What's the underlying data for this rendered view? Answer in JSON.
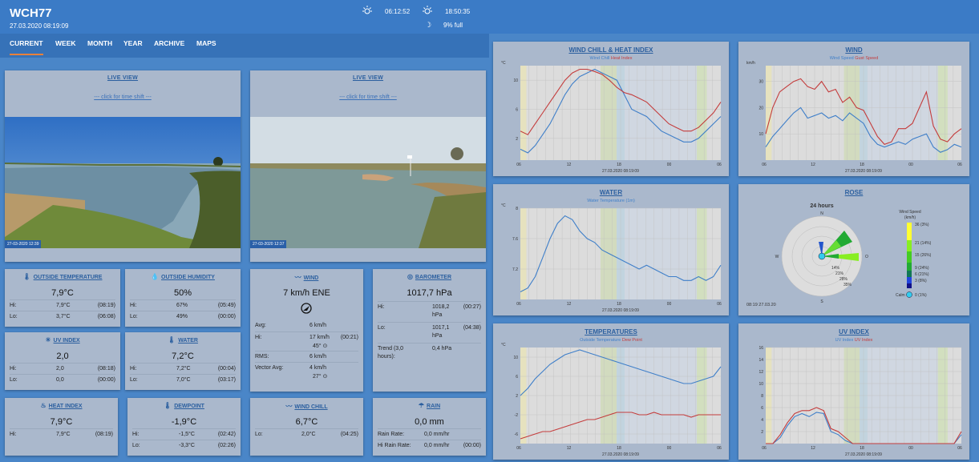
{
  "header": {
    "title": "WCH77",
    "datetime": "27.03.2020 08:19:09",
    "sunrise": "06:12:52",
    "sunset": "18:50:35",
    "moon_phase": "9% full"
  },
  "nav": {
    "items": [
      "CURRENT",
      "WEEK",
      "MONTH",
      "YEAR",
      "ARCHIVE",
      "MAPS"
    ]
  },
  "cams": [
    {
      "title": "LIVE VIEW",
      "link": "--- click for time shift ---",
      "stamp": "27-03-2020 12:39"
    },
    {
      "title": "LIVE VIEW",
      "link": "--- click for time shift ---",
      "stamp": "27-03-2020 12:37"
    }
  ],
  "outside_temp": {
    "title": "OUTSIDE TEMPERATURE",
    "value": "7,9°C",
    "hi_label": "Hi:",
    "hi": "7,9°C",
    "hi_time": "(08:19)",
    "lo_label": "Lo:",
    "lo": "3,7°C",
    "lo_time": "(06:08)"
  },
  "outside_hum": {
    "title": "OUTSIDE HUMIDITY",
    "value": "50%",
    "hi_label": "Hi:",
    "hi": "67%",
    "hi_time": "(05:49)",
    "lo_label": "Lo:",
    "lo": "49%",
    "lo_time": "(00:00)"
  },
  "uv": {
    "title": "UV INDEX",
    "value": "2,0",
    "hi_label": "Hi:",
    "hi": "2,0",
    "hi_time": "(08:18)",
    "lo_label": "Lo:",
    "lo": "0,0",
    "lo_time": "(00:00)"
  },
  "water": {
    "title": "WATER",
    "value": "7,2°C",
    "hi_label": "Hi:",
    "hi": "7,2°C",
    "hi_time": "(00:04)",
    "lo_label": "Lo:",
    "lo": "7,0°C",
    "lo_time": "(03:17)"
  },
  "heat": {
    "title": "HEAT INDEX",
    "value": "7,9°C",
    "hi_label": "Hi:",
    "hi": "7,9°C",
    "hi_time": "(08:19)"
  },
  "dew": {
    "title": "DEWPOINT",
    "value": "-1,9°C",
    "hi_label": "Hi:",
    "hi": "-1,5°C",
    "hi_time": "(02:42)",
    "lo_label": "Lo:",
    "lo": "-3,3°C",
    "lo_time": "(02:26)"
  },
  "wind": {
    "title": "WIND",
    "value": "7 km/h ENE",
    "avg_label": "Avg:",
    "avg": "6 km/h",
    "hi_label": "Hi:",
    "hi": "17 km/h",
    "hi_deg": "45° ⊙",
    "hi_time": "(00:21)",
    "rms_label": "RMS:",
    "rms": "6 km/h",
    "vec_label": "Vector Avg:",
    "vec": "4 km/h",
    "vec_deg": "27° ⊙"
  },
  "baro": {
    "title": "BAROMETER",
    "value": "1017,7 hPa",
    "hi_label": "Hi:",
    "hi": "1018,2",
    "hi_unit": "hPa",
    "hi_time": "(00:27)",
    "lo_label": "Lo:",
    "lo": "1017,1",
    "lo_unit": "hPa",
    "lo_time": "(04:38)",
    "trend_label": "Trend (3,0",
    "trend_label2": "hours):",
    "trend": "0,4 hPa"
  },
  "windchill": {
    "title": "WIND CHILL",
    "value": "6,7°C",
    "lo_label": "Lo:",
    "lo": "2,0°C",
    "lo_time": "(04:25)"
  },
  "rain": {
    "title": "RAIN",
    "value": "0,0 mm",
    "rate_label": "Rain Rate:",
    "rate": "0,0 mm/hr",
    "hirate_label": "Hi Rain Rate:",
    "hirate": "0,0 mm/hr",
    "hirate_time": "(00:00)"
  },
  "charts": {
    "wchi": {
      "title": "WIND CHILL & HEAT INDEX",
      "s1": "Wind Chill",
      "s2": "Heat Index",
      "unit": "°C",
      "foot": "27.03.2020 08:19:09"
    },
    "wind": {
      "title": "WIND",
      "s1": "Wind Speed",
      "s2": "Gust Speed",
      "unit": "km/h",
      "foot": "27.03.2020 08:19:09"
    },
    "water": {
      "title": "WATER",
      "s1": "Water Temperature (1m)",
      "unit": "°C",
      "foot": "27.03.2020 08:19:09"
    },
    "rose": {
      "title": "ROSE",
      "period": "24 hours",
      "n": "N",
      "s": "S",
      "w": "W",
      "o": "O",
      "foot": "08:19 27.03.20",
      "legend_title": "Wind Speed",
      "legend_unit": "(km/h)",
      "legend": [
        "36 (3%)",
        "21 (14%)",
        "15 (26%)",
        "9 (24%)",
        "6 (21%)",
        "3 (8%)",
        "0 (1%)"
      ],
      "calm": "Calm",
      "rings": [
        "14%",
        "21%",
        "28%",
        "35%"
      ]
    },
    "temps": {
      "title": "TEMPERATURES",
      "s1": "Outside Temperature",
      "s2": "Dew Point",
      "unit": "°C",
      "foot": "27.03.2020 08:19:09"
    },
    "uv": {
      "title": "UV INDEX",
      "s1": "UV Index",
      "s2": "UV Index",
      "foot": "27.03.2020 08:19:09"
    }
  },
  "chart_data": [
    {
      "type": "line",
      "title": "WIND CHILL & HEAT INDEX",
      "ylabel": "°C",
      "ylim": [
        -1,
        12
      ],
      "x_ticks": [
        "06",
        "12",
        "18",
        "00",
        "06"
      ],
      "y_ticks": [
        2,
        6,
        10
      ],
      "series": [
        {
          "name": "Wind Chill",
          "color": "#3f7fc9",
          "values": [
            0.5,
            0,
            1,
            2.5,
            4,
            6,
            8,
            9.5,
            10.5,
            11,
            11.5,
            11,
            10.5,
            10,
            8,
            6,
            5.5,
            5,
            4,
            3,
            2.5,
            2,
            1.5,
            1.5,
            2,
            3,
            4,
            5
          ]
        },
        {
          "name": "Heat Index",
          "color": "#c43c3c",
          "values": [
            3,
            2.5,
            4,
            5.5,
            7,
            8.5,
            10,
            11,
            11.5,
            11.5,
            11.2,
            10.8,
            10,
            9,
            8.3,
            8,
            7.5,
            7,
            6,
            5,
            4,
            3.5,
            3,
            3,
            3.5,
            4.5,
            5.5,
            7
          ]
        }
      ]
    },
    {
      "type": "line",
      "title": "WIND",
      "ylabel": "km/h",
      "ylim": [
        0,
        36
      ],
      "x_ticks": [
        "06",
        "12",
        "18",
        "00",
        "06"
      ],
      "y_ticks": [
        10,
        20,
        30
      ],
      "series": [
        {
          "name": "Wind Speed",
          "color": "#3f7fc9",
          "values": [
            5,
            9,
            12,
            15,
            18,
            20,
            16,
            17,
            18,
            16,
            17,
            15,
            18,
            16,
            14,
            9,
            6,
            5,
            6,
            7,
            6,
            8,
            9,
            10,
            5,
            3,
            4,
            6,
            5
          ]
        },
        {
          "name": "Gust Speed",
          "color": "#c43c3c",
          "values": [
            10,
            20,
            26,
            28,
            30,
            31,
            28,
            27,
            30,
            26,
            27,
            22,
            24,
            20,
            19,
            14,
            9,
            6,
            7,
            12,
            12,
            14,
            20,
            26,
            13,
            8,
            7,
            10,
            12
          ]
        }
      ]
    },
    {
      "type": "line",
      "title": "WATER",
      "ylabel": "°C",
      "ylim": [
        6.8,
        8.0
      ],
      "x_ticks": [
        "06",
        "12",
        "18",
        "00",
        "06"
      ],
      "y_ticks": [
        7.2,
        7.6,
        8.0
      ],
      "series": [
        {
          "name": "Water Temperature (1m)",
          "values": [
            6.9,
            6.95,
            7.1,
            7.35,
            7.6,
            7.8,
            7.9,
            7.85,
            7.7,
            7.6,
            7.55,
            7.45,
            7.4,
            7.35,
            7.3,
            7.25,
            7.2,
            7.25,
            7.2,
            7.15,
            7.1,
            7.1,
            7.05,
            7.05,
            7.1,
            7.05,
            7.1,
            7.25
          ]
        }
      ]
    },
    {
      "type": "line",
      "title": "TEMPERATURES",
      "ylabel": "°C",
      "ylim": [
        -8,
        12
      ],
      "x_ticks": [
        "06",
        "12",
        "18",
        "00",
        "06"
      ],
      "y_ticks": [
        -6,
        -2,
        2,
        6,
        10
      ],
      "series": [
        {
          "name": "Outside Temperature",
          "color": "#3f7fc9",
          "values": [
            2,
            3.5,
            5.5,
            7,
            8.5,
            9.5,
            10.5,
            11,
            11.5,
            11,
            10.5,
            10,
            9.5,
            9,
            8.5,
            8,
            7.5,
            7,
            6.5,
            6,
            5.5,
            5,
            4.5,
            4.5,
            5,
            5.5,
            6,
            8
          ]
        },
        {
          "name": "Dew Point",
          "color": "#c43c3c",
          "values": [
            -7,
            -6.5,
            -6,
            -5.5,
            -5.5,
            -5,
            -4.5,
            -4,
            -3.5,
            -3,
            -3,
            -2.5,
            -2,
            -1.5,
            -1.5,
            -1.5,
            -2,
            -2,
            -1.5,
            -2,
            -2,
            -2,
            -2,
            -2.5,
            -2,
            -2,
            -2,
            -2
          ]
        }
      ]
    },
    {
      "type": "line",
      "title": "UV INDEX",
      "ylim": [
        0,
        16
      ],
      "x_ticks": [
        "06",
        "12",
        "18",
        "00",
        "06"
      ],
      "y_ticks": [
        2,
        4,
        6,
        8,
        10,
        12,
        14,
        16
      ],
      "series": [
        {
          "name": "UV Index",
          "color": "#3f7fc9",
          "values": [
            0,
            0,
            1,
            3,
            4.5,
            5,
            4.5,
            5.2,
            5,
            2,
            1.5,
            0.5,
            0,
            0,
            0,
            0,
            0,
            0,
            0,
            0,
            0,
            0,
            0,
            0,
            0,
            0,
            0,
            1.5
          ]
        },
        {
          "name": "UV Index",
          "color": "#c43c3c",
          "values": [
            0,
            0,
            1.5,
            3.5,
            5,
            5.5,
            5.5,
            6,
            5.5,
            2.5,
            2,
            1,
            0,
            0,
            0,
            0,
            0,
            0,
            0,
            0,
            0,
            0,
            0,
            0,
            0,
            0,
            0,
            2
          ]
        }
      ]
    }
  ]
}
